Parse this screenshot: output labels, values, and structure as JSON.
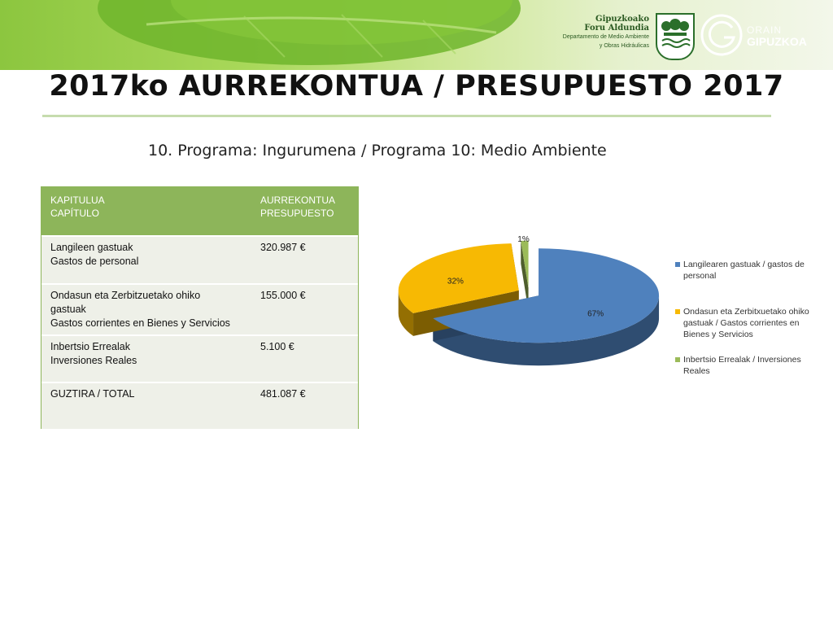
{
  "header": {
    "org_line1": "Gipuzkoako",
    "org_line2": "Foru Aldundia",
    "dept_line1": "Departamento de Medio Ambiente",
    "dept_line2": "y Obras Hidráulicas",
    "brand_line1": "ORAIN",
    "brand_line2": "GIPUZKOA"
  },
  "title": "2017ko AURREKONTUA / PRESUPUESTO 2017",
  "subtitle": "10. Programa: Ingurumena / Programa 10: Medio Ambiente",
  "table": {
    "headers": [
      {
        "line1": "KAPITULUA",
        "line2": "CAPÍTULO"
      },
      {
        "line1": "AURREKONTUA",
        "line2": "PRESUPUESTO"
      }
    ],
    "rows": [
      {
        "label_lines": [
          "Langileen gastuak",
          "Gastos de personal"
        ],
        "value": "320.987 €"
      },
      {
        "label_lines": [
          "Ondasun eta Zerbitzuetako ohiko",
          "gastuak",
          "Gastos corrientes en Bienes y Servicios"
        ],
        "value": "155.000 €"
      },
      {
        "label_lines": [
          "Inbertsio Errealak",
          "Inversiones Reales"
        ],
        "value": "5.100 €"
      },
      {
        "label_lines": [
          "GUZTIRA / TOTAL"
        ],
        "value": "481.087  €"
      }
    ]
  },
  "chart_data": {
    "type": "pie",
    "series": [
      {
        "label": "Langilearen gastuak / gastos de personal",
        "value": 67,
        "data_label": "67%",
        "color": "#4f81bd"
      },
      {
        "label": "Ondasun eta Zerbitxuetako ohiko gastuak / Gastos corrientes en Bienes y Servicios",
        "value": 32,
        "data_label": "32%",
        "color": "#f7b903"
      },
      {
        "label": "Inbertsio Errealak / Inversiones Reales",
        "value": 1,
        "data_label": "1%",
        "color": "#9bbb59"
      }
    ],
    "legend_position": "right",
    "style": "3d-exploded"
  }
}
